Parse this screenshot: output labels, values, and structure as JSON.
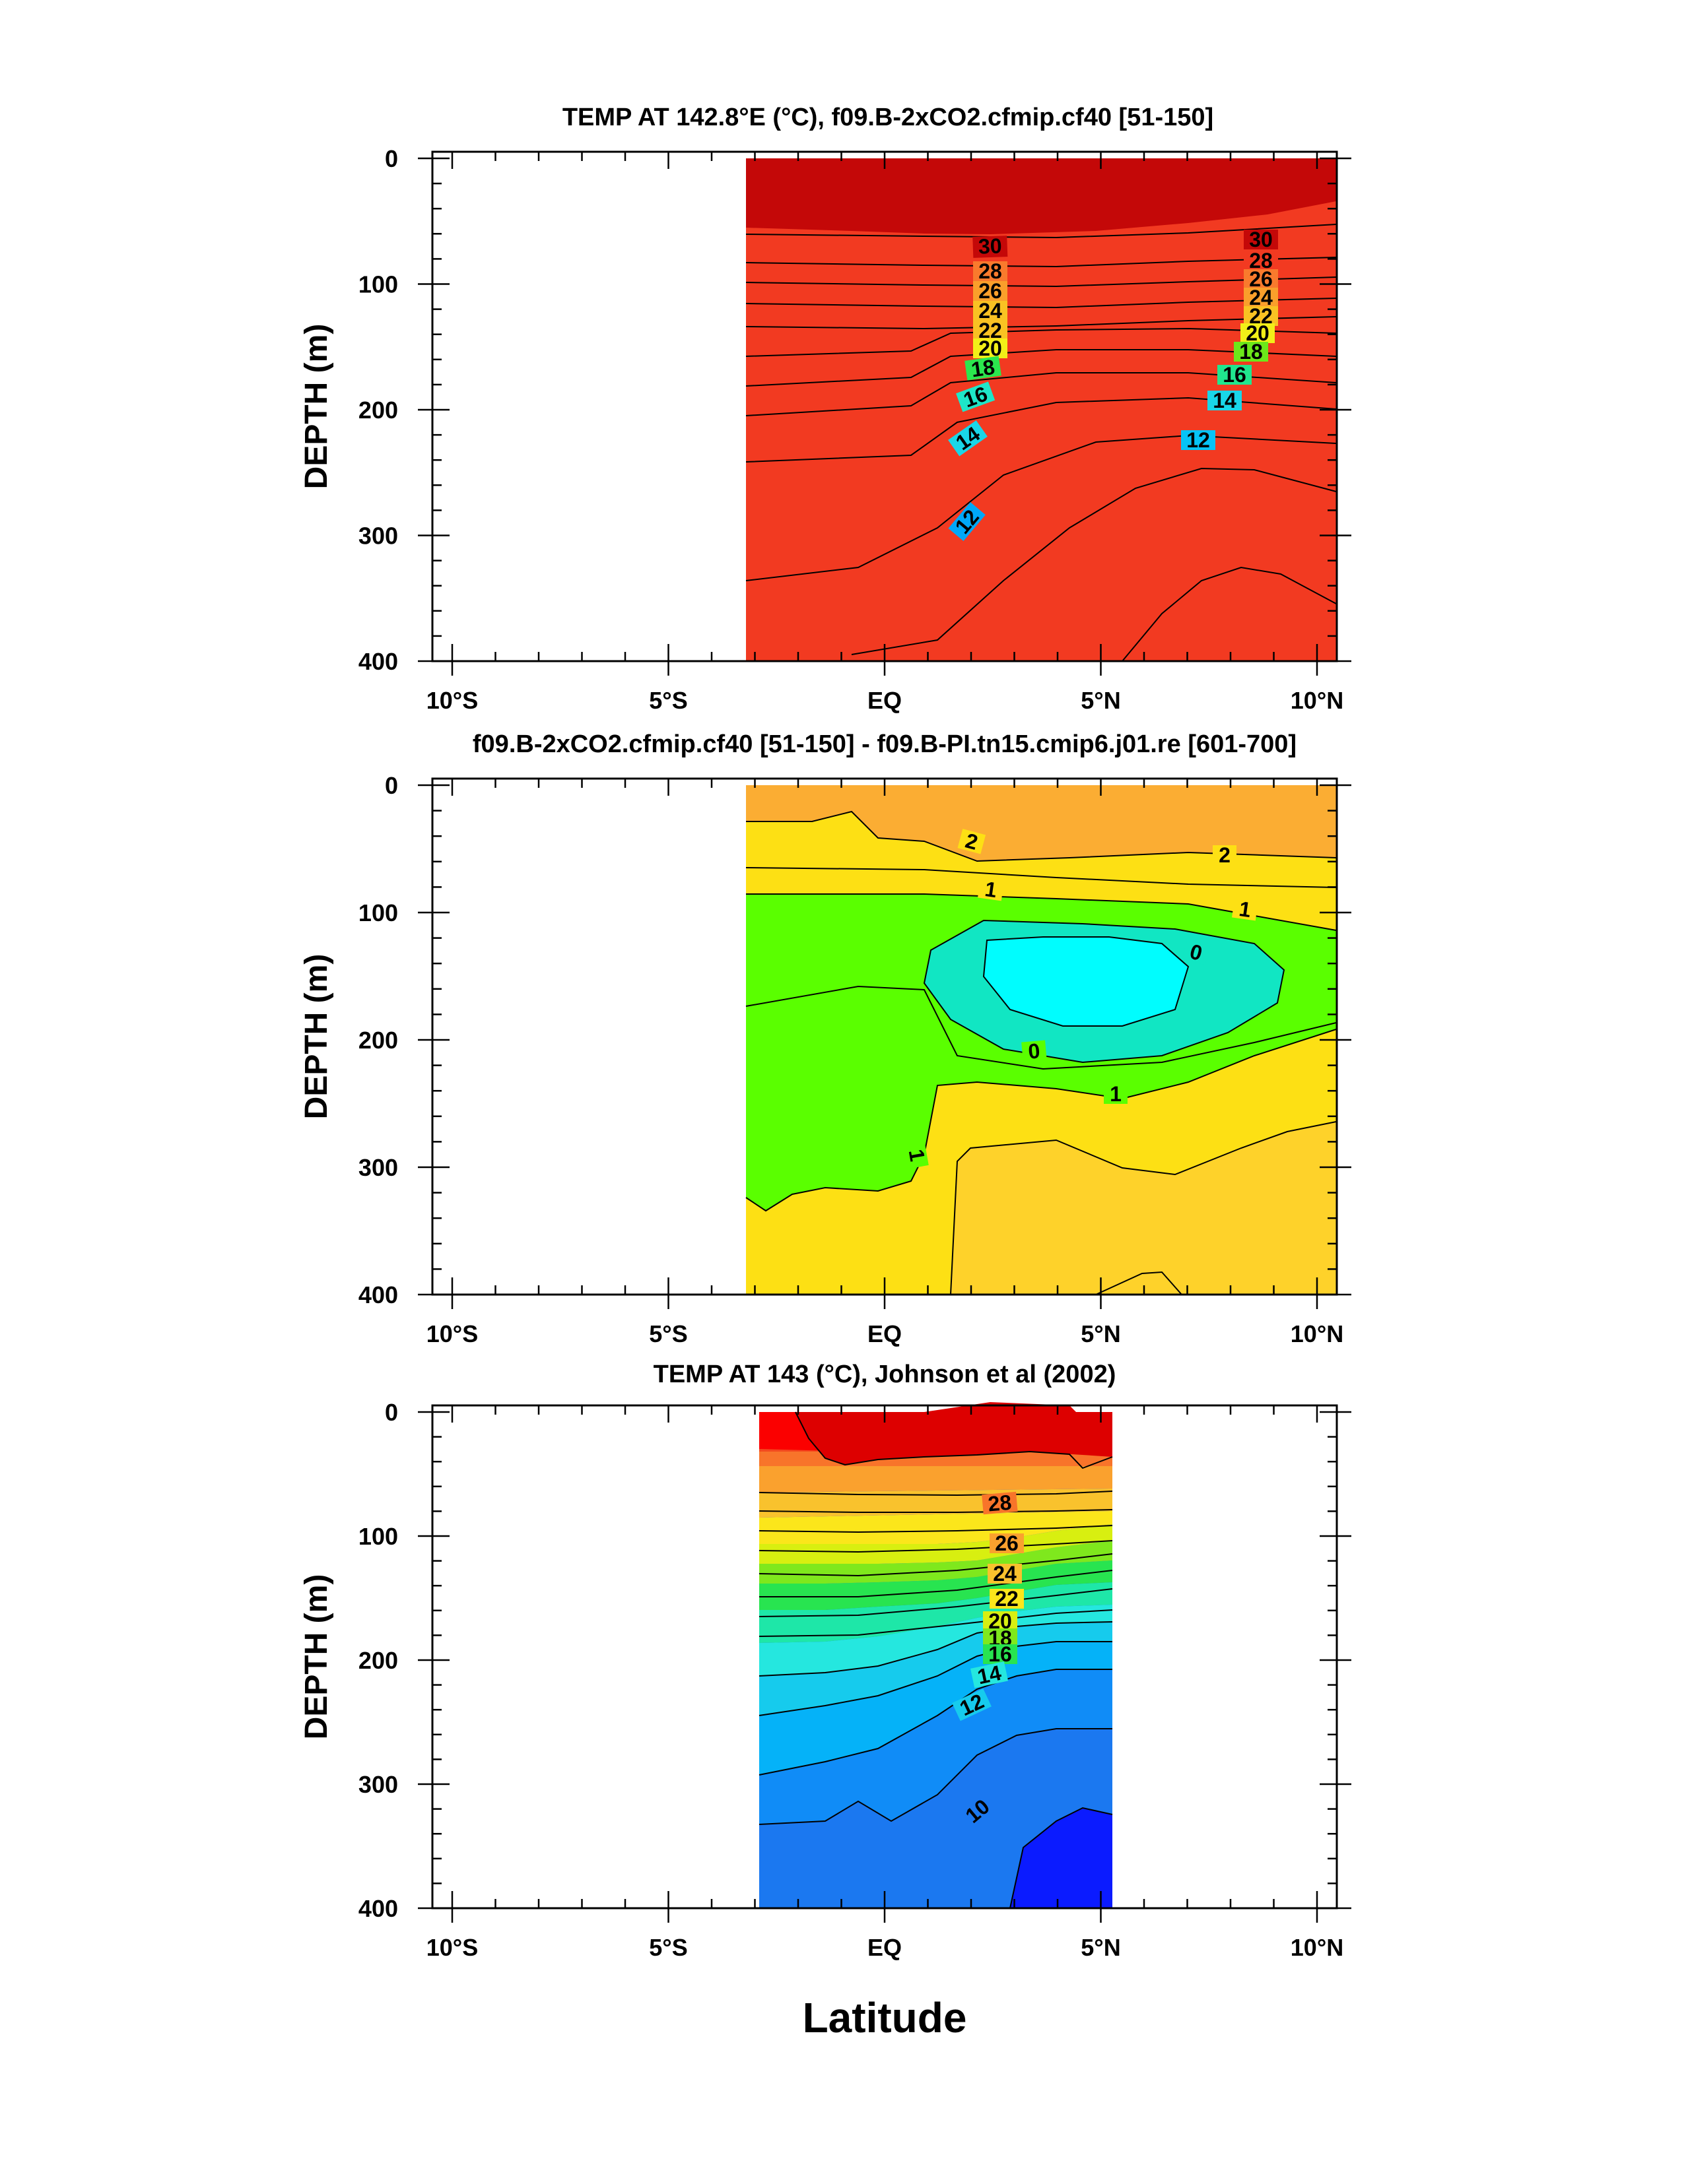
{
  "figure": {
    "xlabel": "Latitude"
  },
  "chart_data": [
    {
      "type": "contour",
      "title": "TEMP AT 142.8°E (°C), f09.B-2xCO2.cfmip.cf40 [51-150]",
      "xlabel": "Latitude",
      "ylabel": "DEPTH (m)",
      "xlim": [
        -10,
        10
      ],
      "ylim": [
        400,
        0
      ],
      "x_ticks": [
        "10°S",
        "5°S",
        "EQ",
        "5°N",
        "10°N"
      ],
      "y_ticks": [
        "0",
        "100",
        "200",
        "300",
        "400"
      ],
      "data_extent_lat": [
        -3,
        10
      ],
      "contour_interval": 1,
      "colorscale": "rainbow (blue = cold, red = warm)",
      "isotherms": [
        {
          "value": 30,
          "lat": [
            -3,
            0,
            2,
            5,
            8,
            10
          ],
          "depth": [
            68,
            68,
            68,
            72,
            68,
            62
          ]
        },
        {
          "value": 28,
          "lat": [
            -3,
            0,
            2,
            5,
            8,
            10
          ],
          "depth": [
            98,
            98,
            100,
            100,
            93,
            90
          ]
        },
        {
          "value": 26,
          "lat": [
            -3,
            0,
            2,
            5,
            8,
            10
          ],
          "depth": [
            112,
            112,
            114,
            114,
            108,
            106
          ]
        },
        {
          "value": 24,
          "lat": [
            -3,
            0,
            2,
            5,
            8,
            10
          ],
          "depth": [
            128,
            128,
            130,
            130,
            124,
            122
          ]
        },
        {
          "value": 22,
          "lat": [
            -3,
            0,
            2,
            5,
            8,
            10
          ],
          "depth": [
            145,
            145,
            145,
            143,
            138,
            136
          ]
        },
        {
          "value": 20,
          "lat": [
            -3,
            0,
            2,
            5,
            8,
            10
          ],
          "depth": [
            165,
            163,
            155,
            152,
            150,
            152
          ]
        },
        {
          "value": 18,
          "lat": [
            -3,
            0,
            2,
            5,
            8,
            10
          ],
          "depth": [
            185,
            180,
            168,
            162,
            162,
            166
          ]
        },
        {
          "value": 16,
          "lat": [
            -3,
            0,
            2,
            5,
            8,
            10
          ],
          "depth": [
            208,
            204,
            190,
            180,
            180,
            185
          ]
        },
        {
          "value": 14,
          "lat": [
            -3,
            0,
            2,
            5,
            8,
            10
          ],
          "depth": [
            240,
            236,
            215,
            205,
            203,
            210
          ]
        },
        {
          "value": 12,
          "lat": [
            -3,
            0,
            2,
            5,
            8,
            10
          ],
          "depth": [
            330,
            318,
            280,
            235,
            232,
            238
          ]
        }
      ],
      "contour_labels": [
        "30",
        "28",
        "26",
        "24",
        "22",
        "20",
        "18",
        "16",
        "14",
        "12"
      ]
    },
    {
      "type": "contour",
      "title": "f09.B-2xCO2.cfmip.cf40 [51-150] - f09.B-PI.tn15.cmip6.j01.re [601-700]",
      "xlabel": "Latitude",
      "ylabel": "DEPTH (m)",
      "xlim": [
        -10,
        10
      ],
      "ylim": [
        400,
        0
      ],
      "x_ticks": [
        "10°S",
        "5°S",
        "EQ",
        "5°N",
        "10°N"
      ],
      "y_ticks": [
        "0",
        "100",
        "200",
        "300",
        "400"
      ],
      "data_extent_lat": [
        -3,
        10
      ],
      "contour_interval": 0.5,
      "colorscale": "cyan (< 0) to orange (> 2)",
      "contour_labels": [
        "2",
        "2",
        "1",
        "1",
        "0",
        "0",
        "1",
        "1"
      ],
      "contour_levels": [
        -0.5,
        0,
        0.5,
        1,
        1.5,
        2
      ]
    },
    {
      "type": "contour",
      "title": "TEMP AT 143 (°C), Johnson et al (2002)",
      "xlabel": "Latitude",
      "ylabel": "DEPTH (m)",
      "xlim": [
        -10,
        10
      ],
      "ylim": [
        400,
        0
      ],
      "x_ticks": [
        "10°S",
        "5°S",
        "EQ",
        "5°N",
        "10°N"
      ],
      "y_ticks": [
        "0",
        "100",
        "200",
        "300",
        "400"
      ],
      "data_extent_lat": [
        -2.8,
        5
      ],
      "contour_interval": 1,
      "colorscale": "rainbow (blue = cold, red = warm)",
      "isotherms": [
        {
          "value": 28,
          "lat": [
            -2.8,
            0,
            2,
            5
          ],
          "depth": [
            68,
            72,
            70,
            75
          ]
        },
        {
          "value": 26,
          "lat": [
            -2.8,
            0,
            2,
            5
          ],
          "depth": [
            102,
            104,
            102,
            100
          ]
        },
        {
          "value": 24,
          "lat": [
            -2.8,
            0,
            2,
            5
          ],
          "depth": [
            128,
            128,
            126,
            123
          ]
        },
        {
          "value": 22,
          "lat": [
            -2.8,
            0,
            2,
            5
          ],
          "depth": [
            152,
            152,
            148,
            140
          ]
        },
        {
          "value": 20,
          "lat": [
            -2.8,
            0,
            2,
            5
          ],
          "depth": [
            172,
            172,
            165,
            152
          ]
        },
        {
          "value": 18,
          "lat": [
            -2.8,
            0,
            2,
            5
          ],
          "depth": [
            190,
            188,
            178,
            165
          ]
        },
        {
          "value": 16,
          "lat": [
            -2.8,
            0,
            2,
            5
          ],
          "depth": [
            205,
            200,
            190,
            176
          ]
        },
        {
          "value": 14,
          "lat": [
            -2.8,
            0,
            2,
            5
          ],
          "depth": [
            222,
            215,
            205,
            196
          ]
        },
        {
          "value": 12,
          "lat": [
            -2.8,
            0,
            2,
            5
          ],
          "depth": [
            250,
            240,
            222,
            214
          ]
        },
        {
          "value": 10,
          "lat": [
            -2.8,
            0,
            2,
            5
          ],
          "depth": [
            340,
            330,
            285,
            265
          ]
        }
      ],
      "contour_labels": [
        "28",
        "26",
        "24",
        "22",
        "20",
        "18",
        "16",
        "14",
        "12",
        "10"
      ]
    }
  ]
}
